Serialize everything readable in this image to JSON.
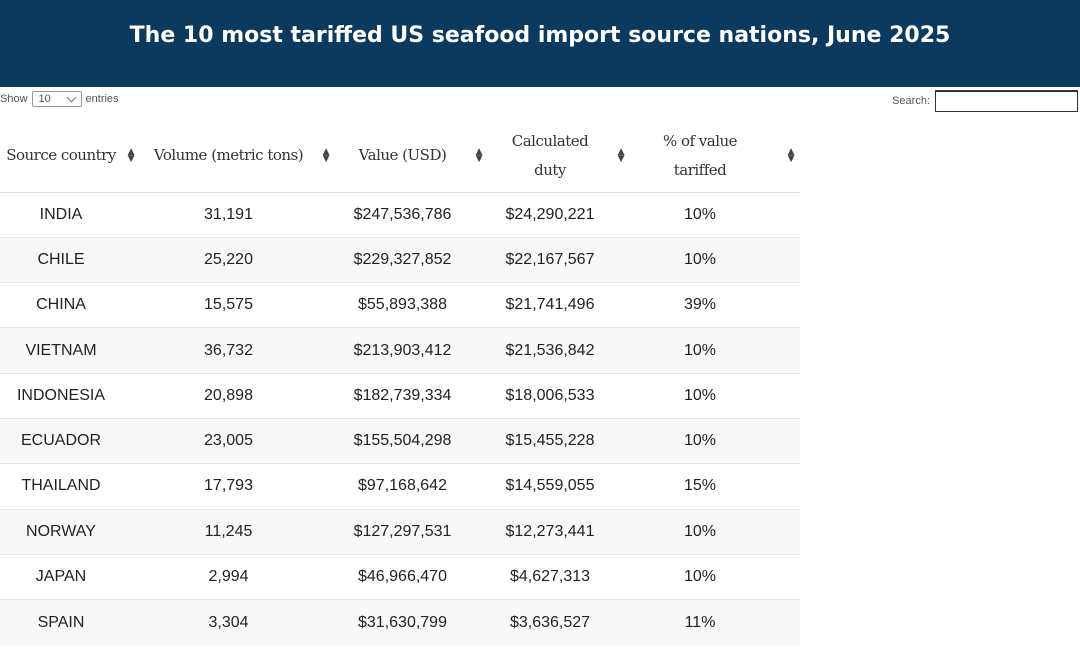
{
  "title": "The 10 most tariffed US seafood import source nations, June 2025",
  "controls": {
    "show_label": "Show",
    "entries_value": "10",
    "entries_label": "entries",
    "search_label": "Search:",
    "search_value": ""
  },
  "columns": [
    "Source country",
    "Volume (metric tons)",
    "Value (USD)",
    "Calculated duty",
    "% of value tariffed"
  ],
  "rows": [
    [
      "INDIA",
      "31,191",
      "$247,536,786",
      "$24,290,221",
      "10%"
    ],
    [
      "CHILE",
      "25,220",
      "$229,327,852",
      "$22,167,567",
      "10%"
    ],
    [
      "CHINA",
      "15,575",
      "$55,893,388",
      "$21,741,496",
      "39%"
    ],
    [
      "VIETNAM",
      "36,732",
      "$213,903,412",
      "$21,536,842",
      "10%"
    ],
    [
      "INDONESIA",
      "20,898",
      "$182,739,334",
      "$18,006,533",
      "10%"
    ],
    [
      "ECUADOR",
      "23,005",
      "$155,504,298",
      "$15,455,228",
      "10%"
    ],
    [
      "THAILAND",
      "17,793",
      "$97,168,642",
      "$14,559,055",
      "15%"
    ],
    [
      "NORWAY",
      "11,245",
      "$127,297,531",
      "$12,273,441",
      "10%"
    ],
    [
      "JAPAN",
      "2,994",
      "$46,966,470",
      "$4,627,313",
      "10%"
    ],
    [
      "SPAIN",
      "3,304",
      "$31,630,799",
      "$3,636,527",
      "11%"
    ]
  ]
}
